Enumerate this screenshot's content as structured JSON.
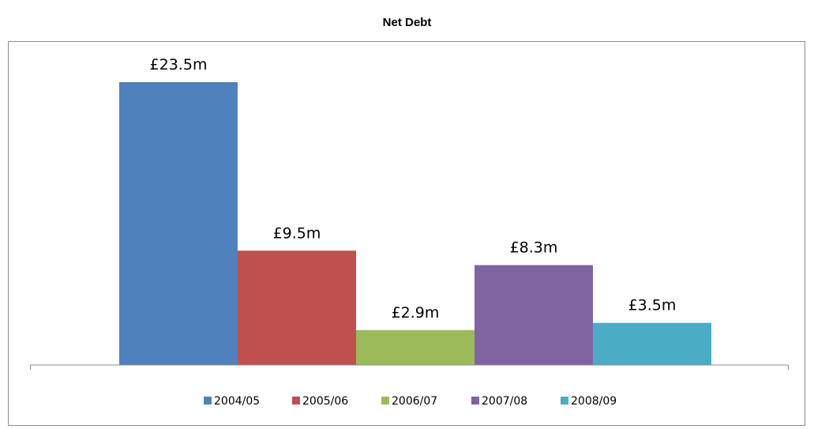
{
  "chart_data": {
    "type": "bar",
    "title": "Net Debt",
    "xlabel": "",
    "ylabel": "",
    "unit_prefix": "£",
    "unit_suffix": "m",
    "ylim": [
      0,
      25
    ],
    "grid": false,
    "legend_position": "bottom",
    "categories": [
      "2004/05",
      "2005/06",
      "2006/07",
      "2007/08",
      "2008/09"
    ],
    "values": [
      23.5,
      9.5,
      2.9,
      8.3,
      3.5
    ],
    "data_labels": [
      "£23.5m",
      "£9.5m",
      "£2.9m",
      "£8.3m",
      "£3.5m"
    ],
    "colors": [
      "#4f81bd",
      "#c0504d",
      "#9bbb59",
      "#8064a2",
      "#4bacc6"
    ]
  }
}
